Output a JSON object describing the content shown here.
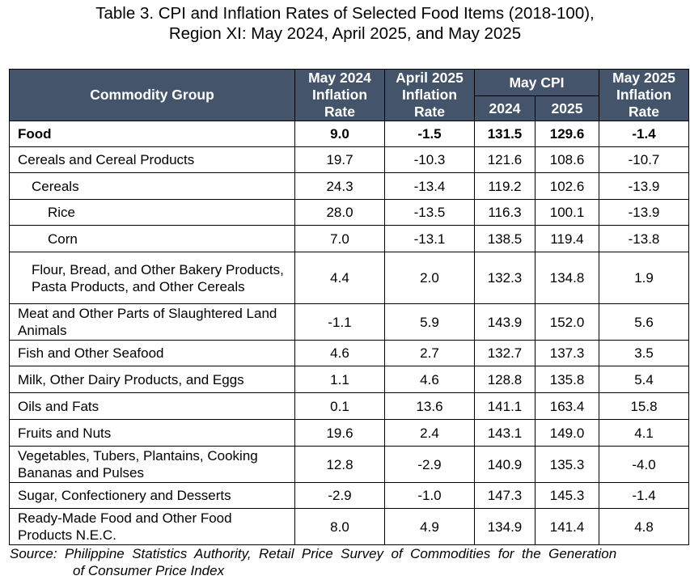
{
  "title": {
    "line1": "Table 3. CPI and Inflation Rates of Selected Food Items (2018-100),",
    "line2": "Region XI: May 2024, April 2025, and May 2025"
  },
  "table": {
    "headers": {
      "commodity": "Commodity Group",
      "may2024_line1": "May 2024",
      "may2024_line2": "Inflation",
      "may2024_line3": "Rate",
      "apr2025_line1": "April 2025",
      "apr2025_line2": "Inflation",
      "apr2025_line3": "Rate",
      "maycpi": "May CPI",
      "cpi2024": "2024",
      "cpi2025": "2025",
      "may2025_line1": "May 2025",
      "may2025_line2": "Inflation",
      "may2025_line3": "Rate"
    },
    "rows": [
      {
        "name": "Food",
        "inf_may2024": "9.0",
        "inf_apr2025": "-1.5",
        "cpi2024": "131.5",
        "cpi2025": "129.6",
        "inf_may2025": "-1.4"
      },
      {
        "name": "Cereals and Cereal Products",
        "inf_may2024": "19.7",
        "inf_apr2025": "-10.3",
        "cpi2024": "121.6",
        "cpi2025": "108.6",
        "inf_may2025": "-10.7"
      },
      {
        "name": "Cereals",
        "inf_may2024": "24.3",
        "inf_apr2025": "-13.4",
        "cpi2024": "119.2",
        "cpi2025": "102.6",
        "inf_may2025": "-13.9"
      },
      {
        "name": "Rice",
        "inf_may2024": "28.0",
        "inf_apr2025": "-13.5",
        "cpi2024": "116.3",
        "cpi2025": "100.1",
        "inf_may2025": "-13.9"
      },
      {
        "name": "Corn",
        "inf_may2024": "7.0",
        "inf_apr2025": "-13.1",
        "cpi2024": "138.5",
        "cpi2025": "119.4",
        "inf_may2025": "-13.8"
      },
      {
        "name": "Flour, Bread, and Other Bakery Products, Pasta Products, and Other Cereals",
        "inf_may2024": "4.4",
        "inf_apr2025": "2.0",
        "cpi2024": "132.3",
        "cpi2025": "134.8",
        "inf_may2025": "1.9"
      },
      {
        "name": "Meat and Other Parts of Slaughtered Land Animals",
        "inf_may2024": "-1.1",
        "inf_apr2025": "5.9",
        "cpi2024": "143.9",
        "cpi2025": "152.0",
        "inf_may2025": "5.6"
      },
      {
        "name": "Fish and Other Seafood",
        "inf_may2024": "4.6",
        "inf_apr2025": "2.7",
        "cpi2024": "132.7",
        "cpi2025": "137.3",
        "inf_may2025": "3.5"
      },
      {
        "name": "Milk, Other Dairy Products, and Eggs",
        "inf_may2024": "1.1",
        "inf_apr2025": "4.6",
        "cpi2024": "128.8",
        "cpi2025": "135.8",
        "inf_may2025": "5.4"
      },
      {
        "name": "Oils and Fats",
        "inf_may2024": "0.1",
        "inf_apr2025": "13.6",
        "cpi2024": "141.1",
        "cpi2025": "163.4",
        "inf_may2025": "15.8"
      },
      {
        "name": "Fruits and Nuts",
        "inf_may2024": "19.6",
        "inf_apr2025": "2.4",
        "cpi2024": "143.1",
        "cpi2025": "149.0",
        "inf_may2025": "4.1"
      },
      {
        "name": "Vegetables, Tubers, Plantains, Cooking Bananas and Pulses",
        "inf_may2024": "12.8",
        "inf_apr2025": "-2.9",
        "cpi2024": "140.9",
        "cpi2025": "135.3",
        "inf_may2025": "-4.0"
      },
      {
        "name": "Sugar, Confectionery and Desserts",
        "inf_may2024": "-2.9",
        "inf_apr2025": "-1.0",
        "cpi2024": "147.3",
        "cpi2025": "145.3",
        "inf_may2025": "-1.4"
      },
      {
        "name": "Ready-Made Food and Other Food Products N.E.C.",
        "inf_may2024": "8.0",
        "inf_apr2025": "4.9",
        "cpi2024": "134.9",
        "cpi2025": "141.4",
        "inf_may2025": "4.8"
      }
    ]
  },
  "source": {
    "line1": "Source:  Philippine  Statistics  Authority,  Retail  Price  Survey  of  Commodities  for  the  Generation",
    "line2": "of Consumer Price Index"
  },
  "colors": {
    "header_bg": "#44546a",
    "header_text": "#ffffff"
  }
}
